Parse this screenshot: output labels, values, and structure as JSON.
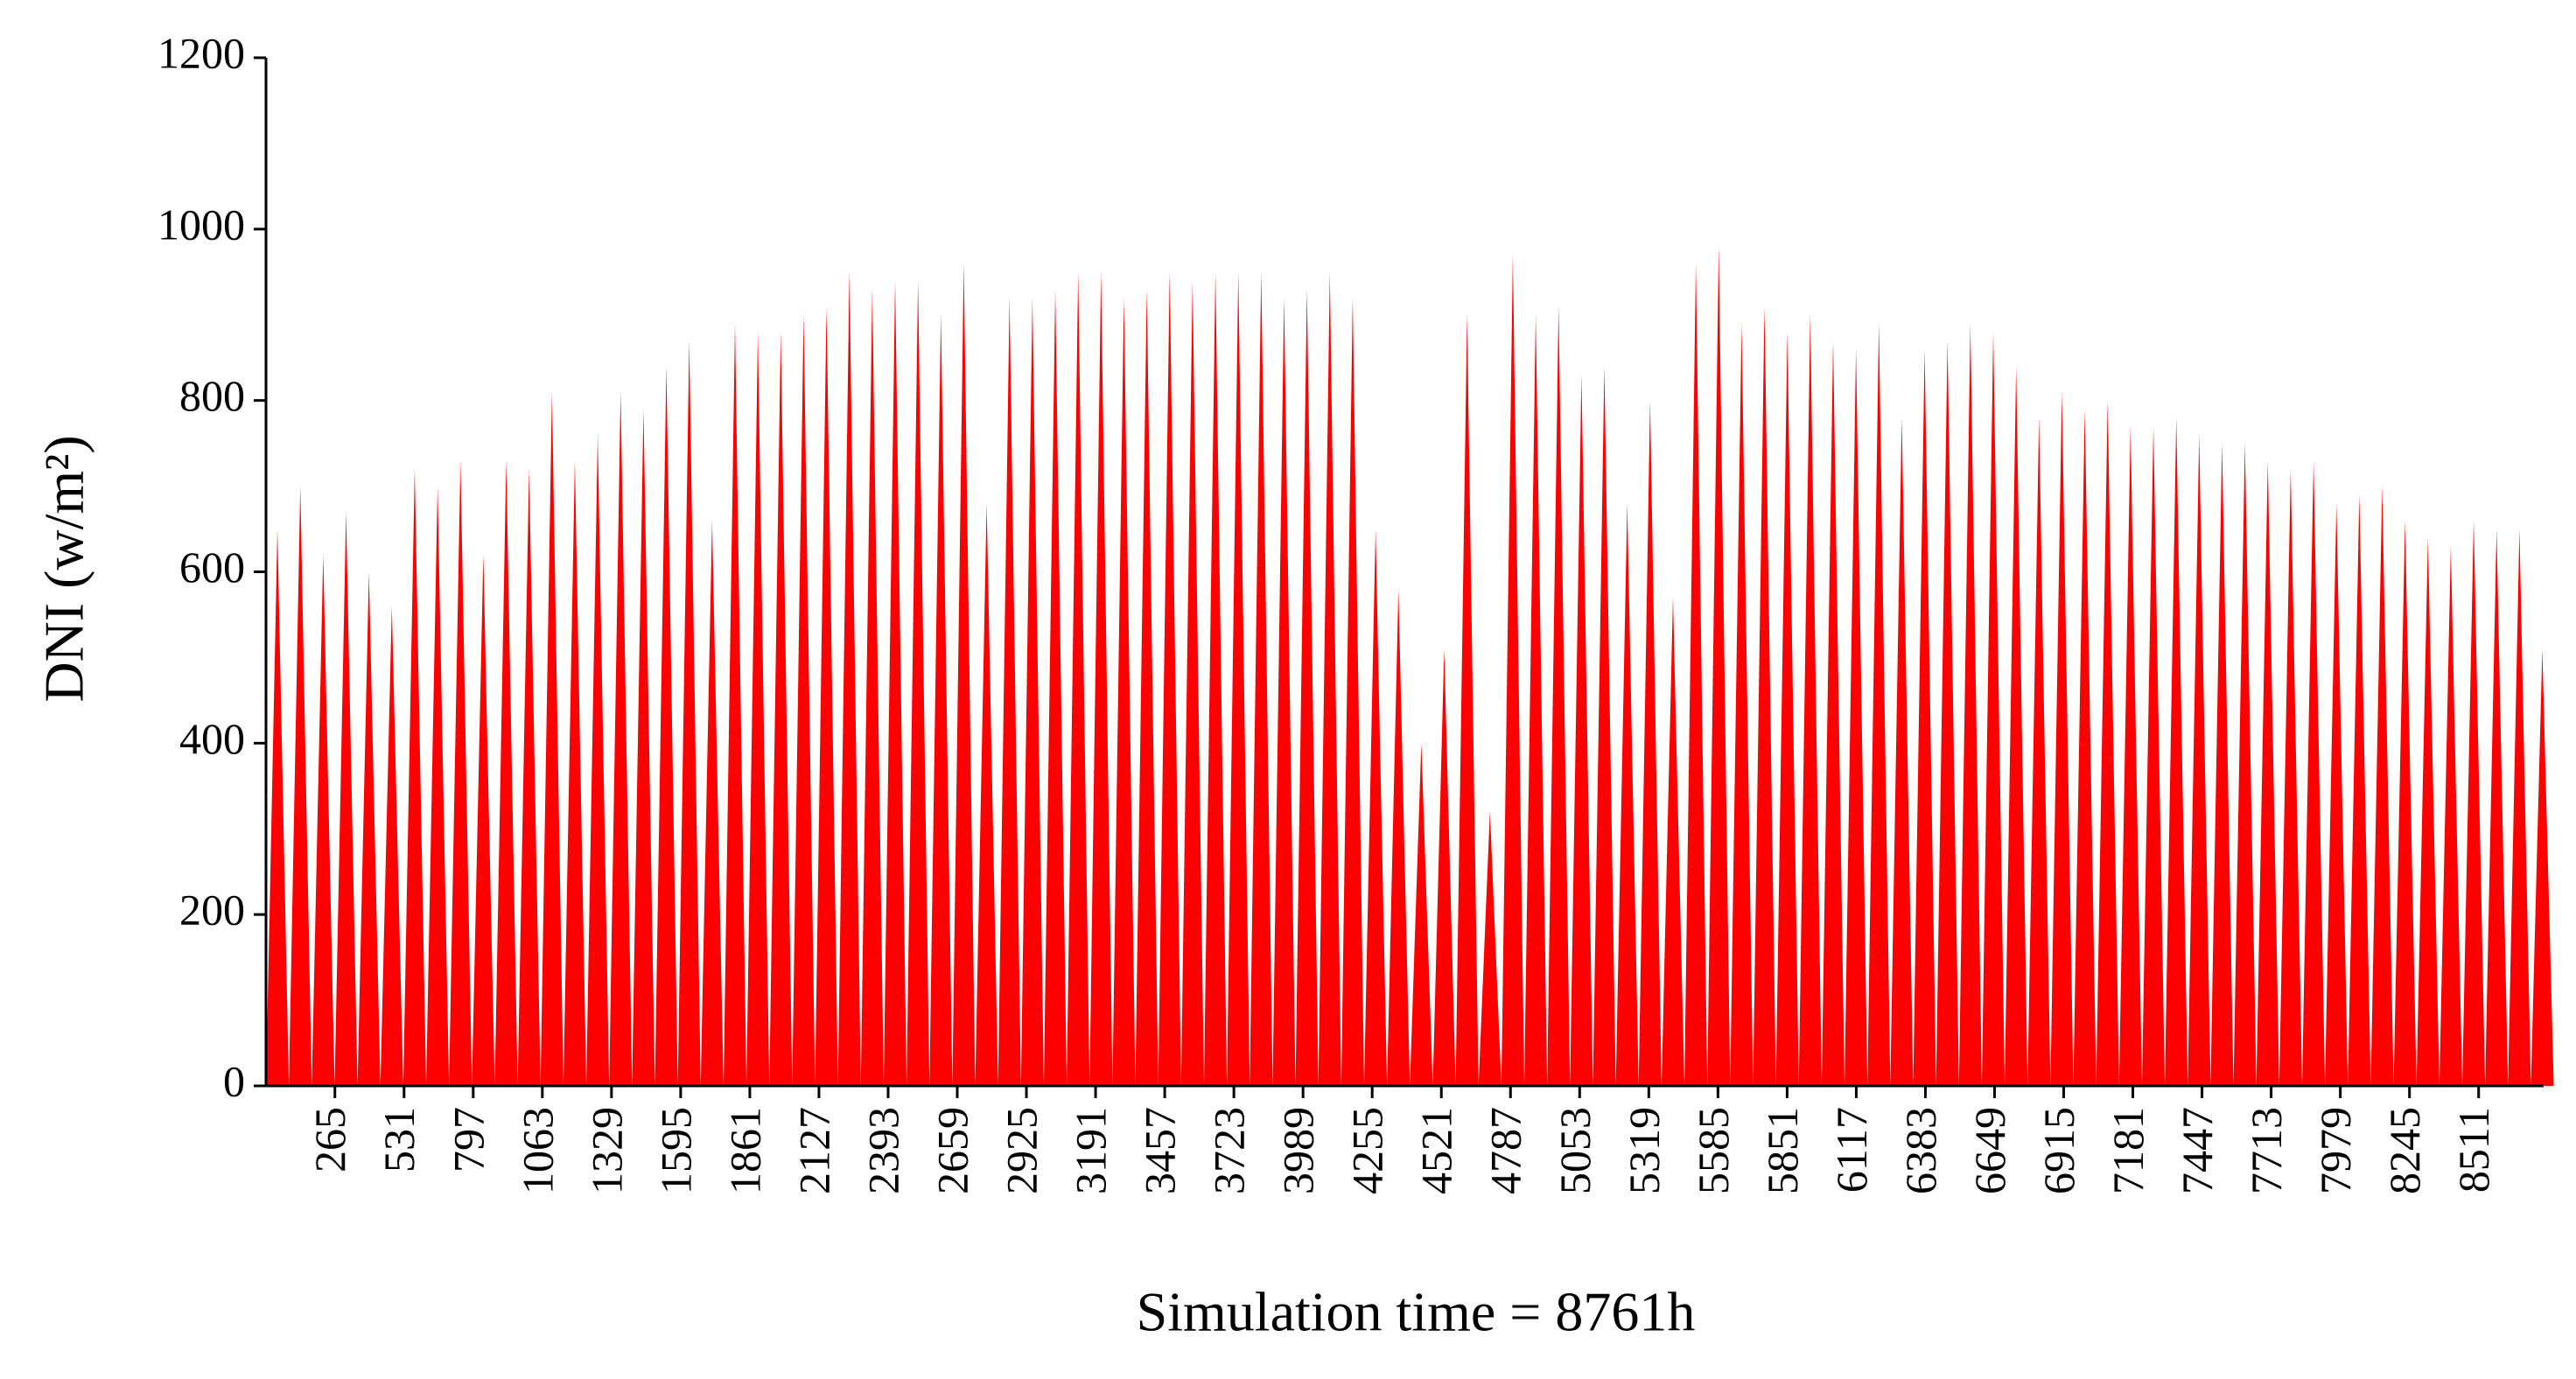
{
  "chart_data": {
    "type": "spike",
    "x_label": "Simulation time = 8761h",
    "y_label": "DNI (w/m²)",
    "color": "#ff0000",
    "xlim": [
      0,
      8761
    ],
    "ylim": [
      0,
      1200
    ],
    "yticks": [
      0,
      200,
      400,
      600,
      800,
      1000,
      1200
    ],
    "xticks": [
      265,
      531,
      797,
      1063,
      1329,
      1595,
      1861,
      2127,
      2393,
      2659,
      2925,
      3191,
      3457,
      3723,
      3989,
      4255,
      4521,
      4787,
      5053,
      5319,
      5585,
      5851,
      6117,
      6383,
      6649,
      6915,
      7181,
      7447,
      7713,
      7979,
      8245,
      8511
    ],
    "x": [
      44,
      132,
      220,
      308,
      396,
      484,
      572,
      660,
      748,
      836,
      924,
      1012,
      1100,
      1188,
      1276,
      1364,
      1452,
      1540,
      1628,
      1716,
      1804,
      1892,
      1980,
      2068,
      2156,
      2244,
      2332,
      2420,
      2508,
      2596,
      2684,
      2772,
      2860,
      2948,
      3036,
      3124,
      3212,
      3300,
      3388,
      3476,
      3564,
      3652,
      3740,
      3828,
      3916,
      4004,
      4092,
      4180,
      4268,
      4356,
      4444,
      4532,
      4620,
      4708,
      4796,
      4884,
      4972,
      5060,
      5148,
      5236,
      5324,
      5412,
      5500,
      5588,
      5676,
      5764,
      5852,
      5940,
      6028,
      6116,
      6204,
      6292,
      6380,
      6468,
      6556,
      6644,
      6732,
      6820,
      6908,
      6996,
      7084,
      7172,
      7260,
      7348,
      7436,
      7524,
      7612,
      7700,
      7788,
      7876,
      7964,
      8052,
      8140,
      8228,
      8316,
      8404,
      8492,
      8580,
      8668,
      8756
    ],
    "values": [
      650,
      700,
      620,
      670,
      600,
      560,
      720,
      700,
      730,
      620,
      730,
      720,
      810,
      730,
      760,
      810,
      790,
      840,
      870,
      660,
      890,
      880,
      880,
      900,
      910,
      950,
      930,
      940,
      940,
      900,
      960,
      680,
      920,
      920,
      930,
      950,
      950,
      920,
      930,
      950,
      940,
      950,
      950,
      950,
      920,
      930,
      950,
      920,
      650,
      580,
      400,
      510,
      900,
      320,
      970,
      900,
      910,
      830,
      840,
      680,
      800,
      570,
      960,
      980,
      890,
      910,
      880,
      900,
      870,
      860,
      890,
      780,
      860,
      870,
      890,
      880,
      840,
      780,
      810,
      790,
      800,
      770,
      770,
      780,
      760,
      750,
      750,
      730,
      720,
      730,
      680,
      690,
      700,
      660,
      640,
      630,
      660,
      650,
      650,
      510
    ]
  }
}
